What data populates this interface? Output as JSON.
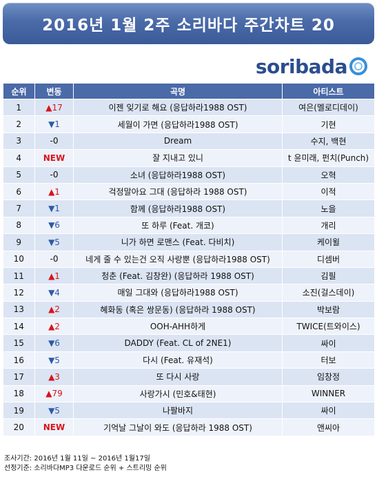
{
  "title": "2016년 1월 2주 소리바다 주간차트 20",
  "logo": "soribada",
  "colors": {
    "header": "#4a6aa8",
    "up": "#d8141b",
    "down": "#2e5aa8"
  },
  "chart_data": {
    "type": "table",
    "columns": [
      "순위",
      "변동",
      "곡명",
      "아티스트"
    ],
    "rows": [
      {
        "rank": "1",
        "dir": "up",
        "change": "▲17",
        "song": "이젠 잊기로 해요 (응답하라1988 OST)",
        "artist": "여은(멜로디데이)"
      },
      {
        "rank": "2",
        "dir": "down",
        "change": "▼1",
        "song": "세월이 가면 (응답하라1988 OST)",
        "artist": "기현"
      },
      {
        "rank": "3",
        "dir": "same",
        "change": "-0",
        "song": "Dream",
        "artist": "수지, 백현"
      },
      {
        "rank": "4",
        "dir": "new",
        "change": "NEW",
        "song": "잘 지내고 있니",
        "artist": "t 윤미래, 펀치(Punch)"
      },
      {
        "rank": "5",
        "dir": "same",
        "change": "-0",
        "song": "소녀 (응답하라1988 OST)",
        "artist": "오혁"
      },
      {
        "rank": "6",
        "dir": "up",
        "change": "▲1",
        "song": "걱정말아요 그대 (응답하라 1988 OST)",
        "artist": "이적"
      },
      {
        "rank": "7",
        "dir": "down",
        "change": "▼1",
        "song": "함께 (응답하라1988 OST)",
        "artist": "노을"
      },
      {
        "rank": "8",
        "dir": "down",
        "change": "▼6",
        "song": "또 하루 (Feat. 개코)",
        "artist": "개리"
      },
      {
        "rank": "9",
        "dir": "down",
        "change": "▼5",
        "song": "니가 하면 로맨스 (Feat. 다비치)",
        "artist": "케이윌"
      },
      {
        "rank": "10",
        "dir": "same",
        "change": "-0",
        "song": "네게 줄 수 있는건 오직 사랑뿐 (응답하라1988 OST)",
        "artist": "디셈버"
      },
      {
        "rank": "11",
        "dir": "up",
        "change": "▲1",
        "song": "청춘 (Feat. 김창완) (응답하라 1988 OST)",
        "artist": "김필"
      },
      {
        "rank": "12",
        "dir": "down",
        "change": "▼4",
        "song": "매일 그대와 (응답하라1988 OST)",
        "artist": "소진(걸스데이)"
      },
      {
        "rank": "13",
        "dir": "up",
        "change": "▲2",
        "song": "혜화동 (혹은 쌍문동) (응답하라 1988 OST)",
        "artist": "박보람"
      },
      {
        "rank": "14",
        "dir": "up",
        "change": "▲2",
        "song": "OOH-AHH하게",
        "artist": "TWICE(트와이스)"
      },
      {
        "rank": "15",
        "dir": "down",
        "change": "▼6",
        "song": "DADDY (Feat. CL of 2NE1)",
        "artist": "싸이"
      },
      {
        "rank": "16",
        "dir": "down",
        "change": "▼5",
        "song": "다시 (Feat. 유재석)",
        "artist": "터보"
      },
      {
        "rank": "17",
        "dir": "up",
        "change": "▲3",
        "song": "또 다시 사랑",
        "artist": "임창정"
      },
      {
        "rank": "18",
        "dir": "up",
        "change": "▲79",
        "song": "사랑가시 (민호&태현)",
        "artist": "WINNER"
      },
      {
        "rank": "19",
        "dir": "down",
        "change": "▼5",
        "song": "나팔바지",
        "artist": "싸이"
      },
      {
        "rank": "20",
        "dir": "new",
        "change": "NEW",
        "song": "기억날 그날이 와도 (응답하라 1988 OST)",
        "artist": "앤씨아"
      }
    ]
  },
  "footer": {
    "period": "조사기간: 2016년 1월 11일 ~ 2016년 1월17일",
    "criteria": "선정기준: 소리바다MP3 다운로드 순위 + 스트리밍 순위"
  }
}
